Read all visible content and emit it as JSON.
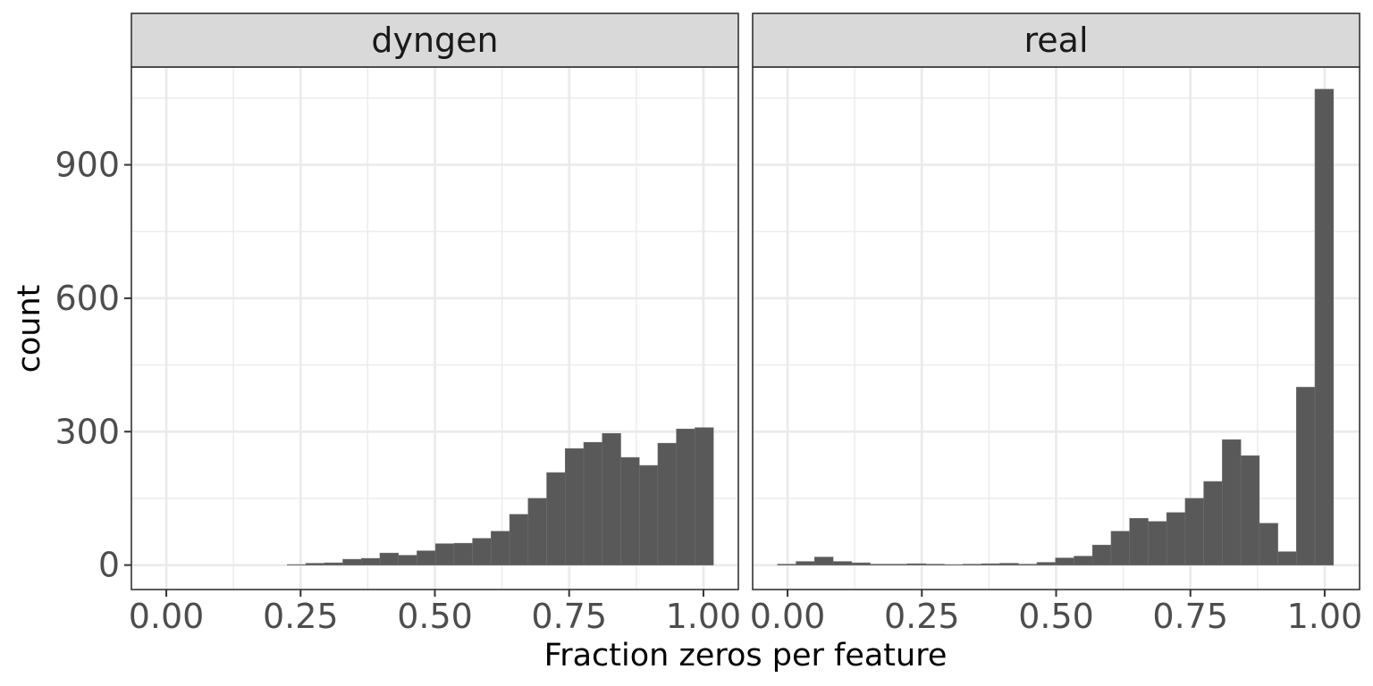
{
  "chart_data": {
    "type": "bar",
    "subtype": "faceted histogram",
    "xlabel": "Fraction zeros per feature",
    "ylabel": "count",
    "xlim": [
      -0.065,
      1.065
    ],
    "ylim": [
      -55,
      1120
    ],
    "x_ticks": [
      "0.00",
      "0.25",
      "0.50",
      "0.75",
      "1.00"
    ],
    "x_tick_values": [
      0,
      0.25,
      0.5,
      0.75,
      1.0
    ],
    "y_ticks": [
      "0",
      "300",
      "600",
      "900"
    ],
    "y_tick_values": [
      0,
      300,
      600,
      900
    ],
    "grid": true,
    "bar_color": "#595959",
    "strip_color": "#d9d9d9",
    "panel_border_color": "#333333",
    "gridline_color": "#ebebeb",
    "binwidth": 0.0345,
    "panels": [
      {
        "label": "dyngen",
        "bin_centers": [
          0.2424,
          0.2769,
          0.3114,
          0.3459,
          0.3804,
          0.4149,
          0.4494,
          0.4839,
          0.5184,
          0.5529,
          0.5874,
          0.6219,
          0.6564,
          0.6909,
          0.7254,
          0.7599,
          0.7944,
          0.8289,
          0.8634,
          0.8979,
          0.9324,
          0.9669,
          1.0014
        ],
        "counts": [
          1,
          4,
          5,
          13,
          15,
          27,
          22,
          32,
          48,
          49,
          60,
          76,
          114,
          150,
          208,
          262,
          276,
          296,
          242,
          224,
          274,
          306,
          309
        ]
      },
      {
        "label": "real",
        "bin_centers": [
          -0.0014,
          0.0331,
          0.0676,
          0.1021,
          0.1366,
          0.1711,
          0.2056,
          0.2401,
          0.2746,
          0.3091,
          0.3436,
          0.3781,
          0.4126,
          0.4471,
          0.4816,
          0.5161,
          0.5506,
          0.5851,
          0.6196,
          0.6541,
          0.6886,
          0.7231,
          0.7576,
          0.7921,
          0.8266,
          0.8611,
          0.8956,
          0.9301,
          0.9646,
          0.9991
        ],
        "counts": [
          2,
          8,
          18,
          8,
          5,
          2,
          2,
          3,
          2,
          1,
          2,
          3,
          4,
          2,
          6,
          16,
          20,
          45,
          76,
          105,
          98,
          118,
          150,
          188,
          282,
          246,
          94,
          30,
          400,
          1070
        ]
      }
    ]
  }
}
